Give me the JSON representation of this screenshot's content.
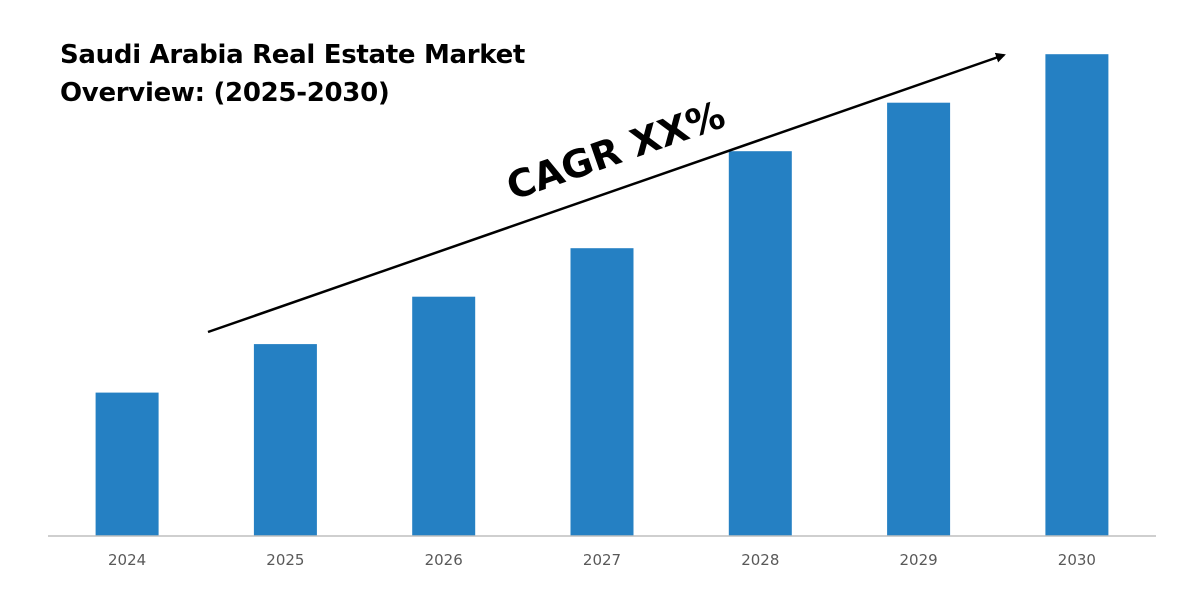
{
  "chart_data": {
    "type": "bar",
    "title": "Saudi Arabia Real Estate Market Overview: (2025-2030)",
    "categories": [
      "2024",
      "2025",
      "2026",
      "2027",
      "2028",
      "2029",
      "2030"
    ],
    "series": [
      {
        "values": [
          136,
          182,
          227,
          273,
          365,
          411,
          457
        ]
      }
    ],
    "ylim": [
      0,
      480
    ],
    "xlabel": "",
    "ylabel": "",
    "grid": false,
    "legend": "none",
    "bar_color": "#2580C3",
    "axis_color": "#BFBFBF",
    "annotation": {
      "text": "CAGR XX%",
      "type": "trend-arrow"
    }
  }
}
